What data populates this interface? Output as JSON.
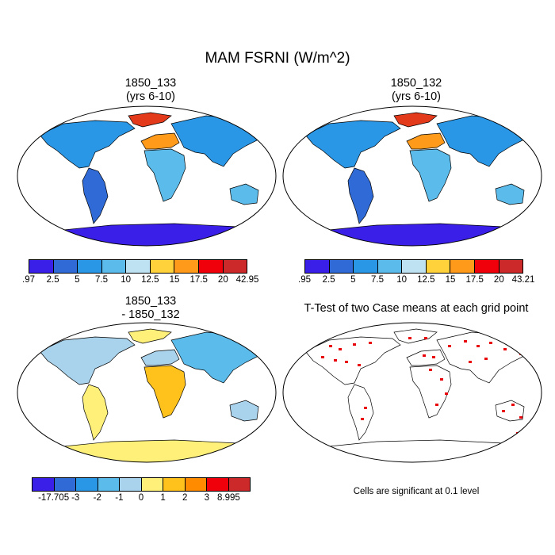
{
  "title": "MAM FSRNI (W/m^2)",
  "panels": [
    {
      "title_line1": "1850_133",
      "title_line2": "(yrs 6-10)"
    },
    {
      "title_line1": "1850_132",
      "title_line2": "(yrs 6-10)"
    },
    {
      "title_line1": "1850_133",
      "title_line2": "- 1850_132"
    },
    {
      "title_line1": "T-Test of two Case means at each grid point",
      "title_line2": ""
    }
  ],
  "colorbars": [
    {
      "labels": [
        ".97",
        "2.5",
        "5",
        "7.5",
        "10",
        "12.5",
        "15",
        "17.5",
        "20",
        "42.95"
      ],
      "colors": [
        "#3a1fe8",
        "#2f6ad6",
        "#2a96e6",
        "#5bbcec",
        "#bfe2f2",
        "#ffd23c",
        "#ff9a1a",
        "#f0000a",
        "#cc2a2a"
      ]
    },
    {
      "labels": [
        ".95",
        "2.5",
        "5",
        "7.5",
        "10",
        "12.5",
        "15",
        "17.5",
        "20",
        "43.21"
      ],
      "colors": [
        "#3a1fe8",
        "#2f6ad6",
        "#2a96e6",
        "#5bbcec",
        "#bfe2f2",
        "#ffd23c",
        "#ff9a1a",
        "#f0000a",
        "#cc2a2a"
      ]
    },
    {
      "labels": [
        "-17.705",
        "-3",
        "-2",
        "-1",
        "0",
        "1",
        "2",
        "3",
        "8.995"
      ],
      "colors": [
        "#3a1fe8",
        "#2f6ad6",
        "#2a96e6",
        "#5bbcec",
        "#a9d3ec",
        "#fff07a",
        "#ffc21c",
        "#ff8c00",
        "#f0000a",
        "#cc2a2a"
      ]
    }
  ],
  "significance_note": "Cells are significant at 0.1 level",
  "colors": {
    "sig_cells": "#e8000b",
    "coast": "#000000"
  }
}
